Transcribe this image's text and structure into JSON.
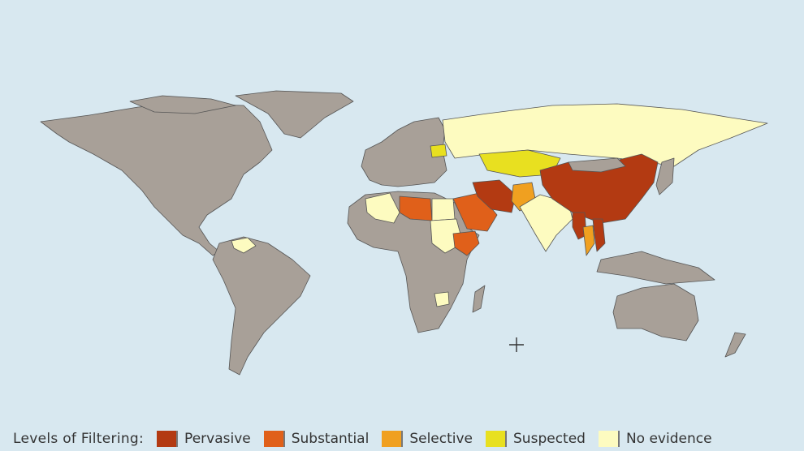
{
  "legend": {
    "title": "Levels of Filtering:",
    "items": [
      {
        "label": "Pervasive",
        "color": "#b33a12"
      },
      {
        "label": "Substantial",
        "color": "#e0601a"
      },
      {
        "label": "Selective",
        "color": "#f0a020"
      },
      {
        "label": "Suspected",
        "color": "#e8e020"
      },
      {
        "label": "No evidence",
        "color": "#fdfbc0"
      }
    ]
  },
  "colors": {
    "ocean": "#d8e8f0",
    "land_no_data": "#a8a098",
    "border": "#555555"
  },
  "regions": {
    "pervasive": [
      "China",
      "Iran",
      "Saudi-area",
      "Myanmar",
      "Vietnam"
    ],
    "substantial": [
      "Libya",
      "Saudi Arabia",
      "Ethiopia",
      "Syria"
    ],
    "selective": [
      "Pakistan",
      "Thailand",
      "Jordan"
    ],
    "suspected": [
      "Kazakhstan",
      "Belarus"
    ],
    "no_evidence": [
      "Russia",
      "Algeria",
      "Egypt",
      "Sudan",
      "India",
      "Venezuela",
      "Zimbabwe",
      "Turkmenistan"
    ]
  }
}
